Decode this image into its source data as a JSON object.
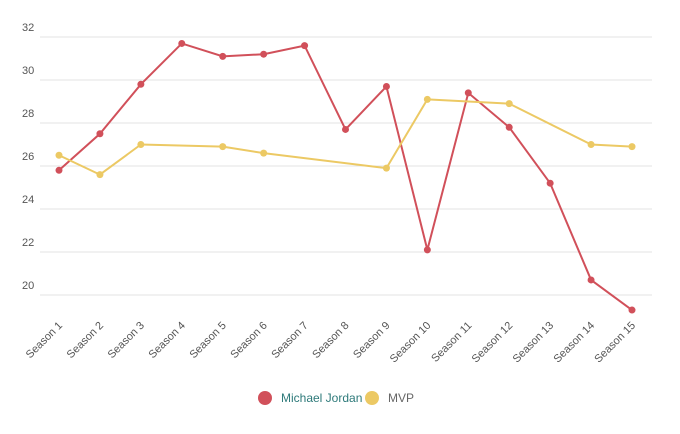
{
  "chart_data": {
    "type": "line",
    "categories": [
      "Season 1",
      "Season 2",
      "Season 3",
      "Season 4",
      "Season 5",
      "Season 6",
      "Season 7",
      "Season 8",
      "Season 9",
      "Season 10",
      "Season 11",
      "Season 12",
      "Season 13",
      "Season 14",
      "Season 15"
    ],
    "series": [
      {
        "name": "Michael Jordan",
        "color": "#d1505a",
        "values": [
          25.8,
          27.5,
          29.8,
          31.7,
          31.1,
          31.2,
          31.6,
          27.7,
          29.7,
          22.1,
          29.4,
          27.8,
          25.2,
          20.7,
          19.3
        ]
      },
      {
        "name": "MVP",
        "color": "#ecc964",
        "values": [
          26.5,
          25.6,
          27.0,
          null,
          26.9,
          26.6,
          null,
          null,
          25.9,
          29.1,
          null,
          28.9,
          null,
          27.0,
          26.9
        ]
      }
    ],
    "ylim": [
      19,
      32.5
    ],
    "yticks": [
      20,
      22,
      24,
      26,
      28,
      30,
      32
    ],
    "grid": true,
    "span_gaps": true,
    "legend": "bottom"
  }
}
